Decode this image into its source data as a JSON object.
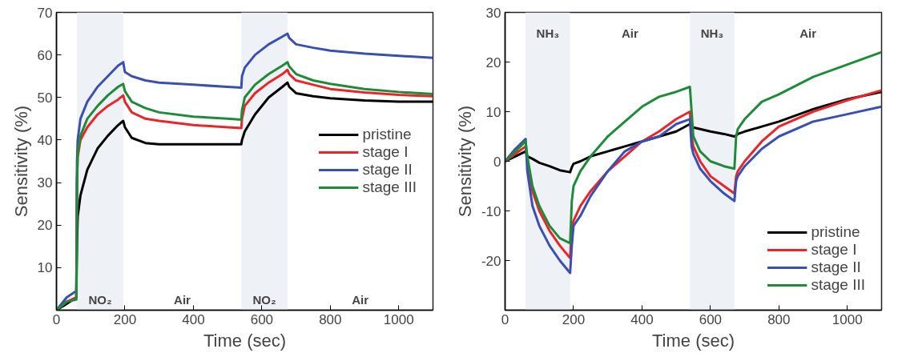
{
  "chart_data": [
    {
      "type": "line",
      "xlabel": "Time (sec)",
      "ylabel": "Sensitivity (%)",
      "xlim": [
        0,
        1100
      ],
      "ylim": [
        0,
        70
      ],
      "xticks": [
        0,
        200,
        400,
        600,
        800,
        1000
      ],
      "yticks": [
        10,
        20,
        30,
        40,
        50,
        60,
        70
      ],
      "grid": false,
      "legend": "right",
      "line_style": "solid",
      "marker": "none",
      "x": [
        0,
        30,
        58,
        60,
        62,
        70,
        90,
        120,
        150,
        180,
        195,
        200,
        220,
        260,
        300,
        400,
        500,
        540,
        542,
        550,
        580,
        620,
        660,
        675,
        680,
        700,
        750,
        800,
        900,
        1000,
        1100
      ],
      "series": [
        {
          "name": "pristine",
          "color": "#000000",
          "values": [
            0,
            1.5,
            3,
            16,
            22,
            27,
            33,
            38,
            41,
            43.5,
            44.5,
            43,
            40.5,
            39.3,
            39,
            39,
            39,
            39,
            40,
            42,
            46,
            50,
            52.5,
            53.5,
            52.5,
            51,
            50.3,
            49.8,
            49.3,
            49,
            49
          ]
        },
        {
          "name": "stage I",
          "color": "#e8262a",
          "values": [
            0,
            2,
            3,
            30,
            36,
            40,
            43,
            46,
            48,
            49.5,
            50.5,
            49,
            46.5,
            45,
            44.5,
            43.5,
            43,
            42.8,
            45,
            48,
            51,
            53.5,
            55.5,
            56.5,
            55.5,
            54,
            53,
            52,
            51.2,
            50.6,
            50.3
          ]
        },
        {
          "name": "stage II",
          "color": "#3a50b0",
          "values": [
            0,
            3,
            4.5,
            35,
            40,
            45,
            49,
            52.5,
            55,
            57.5,
            58.3,
            56,
            55,
            54,
            53.5,
            53,
            52.5,
            52.3,
            55,
            57,
            60,
            62.5,
            64.3,
            65,
            64,
            62.5,
            61.7,
            61,
            60.3,
            59.8,
            59.3
          ]
        },
        {
          "name": "stage III",
          "color": "#1e8a3a",
          "values": [
            0,
            2,
            2.5,
            30,
            37,
            41,
            45,
            48,
            50.5,
            52.5,
            53.2,
            51.5,
            49,
            47.5,
            46.5,
            45.5,
            45,
            44.8,
            47,
            50,
            53,
            55.5,
            57.5,
            58.3,
            57.3,
            55.5,
            54,
            53.2,
            52,
            51.3,
            50.8
          ]
        }
      ],
      "bands": [
        {
          "axis": "x",
          "from": 60,
          "to": 195,
          "label": "NO₂",
          "color": "#eef1f6"
        },
        {
          "axis": "x",
          "from": 540,
          "to": 675,
          "label": "NO₂",
          "color": "#eef1f6"
        }
      ],
      "annotations": [
        "Air",
        "Air"
      ]
    },
    {
      "type": "line",
      "xlabel": "Time (sec)",
      "ylabel": "Sensitivity (%)",
      "xlim": [
        0,
        1100
      ],
      "ylim": [
        -30,
        30
      ],
      "xticks": [
        0,
        200,
        400,
        600,
        800,
        1000
      ],
      "yticks": [
        -20,
        -10,
        0,
        10,
        20,
        30
      ],
      "grid": false,
      "legend": "bottom right",
      "line_style": "solid",
      "marker": "none",
      "x": [
        0,
        30,
        60,
        65,
        80,
        100,
        130,
        160,
        190,
        195,
        200,
        220,
        250,
        300,
        350,
        400,
        450,
        500,
        540,
        545,
        550,
        570,
        600,
        640,
        670,
        675,
        680,
        700,
        750,
        800,
        900,
        1000,
        1100
      ],
      "series": [
        {
          "name": "pristine",
          "color": "#000000",
          "values": [
            0,
            1,
            2,
            1,
            0.5,
            -0.3,
            -1,
            -1.8,
            -2.2,
            -1.2,
            -0.5,
            0,
            1,
            2,
            3,
            4,
            5,
            6,
            7.5,
            7,
            6.8,
            6.5,
            6,
            5.5,
            5,
            5.2,
            5.5,
            6,
            7,
            8,
            10.5,
            12.5,
            14
          ]
        },
        {
          "name": "stage I",
          "color": "#e8262a",
          "values": [
            0,
            1.5,
            3,
            0,
            -6,
            -10,
            -14,
            -17,
            -19.5,
            -13,
            -12,
            -9,
            -6,
            -2,
            1,
            4,
            6,
            8.5,
            10,
            5,
            3,
            0,
            -3,
            -5,
            -6.5,
            -3,
            -2,
            0,
            4,
            7,
            10,
            12.3,
            14.3
          ]
        },
        {
          "name": "stage II",
          "color": "#3a50b0",
          "values": [
            0,
            2.5,
            4.5,
            -2,
            -9,
            -13,
            -17,
            -20,
            -22.5,
            -17,
            -13,
            -11,
            -7,
            -2,
            2,
            4,
            5,
            7.5,
            8.5,
            3,
            1.5,
            -1.5,
            -4,
            -6.5,
            -8,
            -4,
            -3,
            -1,
            2.5,
            5,
            8,
            9.5,
            11
          ]
        },
        {
          "name": "stage III",
          "color": "#1e8a3a",
          "values": [
            0,
            2,
            4,
            1,
            -5,
            -9,
            -13,
            -15.5,
            -16.5,
            -8,
            -5,
            -2,
            1,
            5,
            8,
            11,
            13,
            14,
            15,
            10,
            5,
            2,
            0,
            -1,
            -1.5,
            5,
            6.5,
            8.5,
            12,
            13.5,
            17,
            19.5,
            22
          ]
        }
      ],
      "bands": [
        {
          "axis": "x",
          "from": 60,
          "to": 190,
          "label": "NH₃",
          "color": "#eef1f6"
        },
        {
          "axis": "x",
          "from": 540,
          "to": 670,
          "label": "NH₃",
          "color": "#eef1f6"
        }
      ],
      "annotations": [
        "Air",
        "Air"
      ]
    }
  ]
}
